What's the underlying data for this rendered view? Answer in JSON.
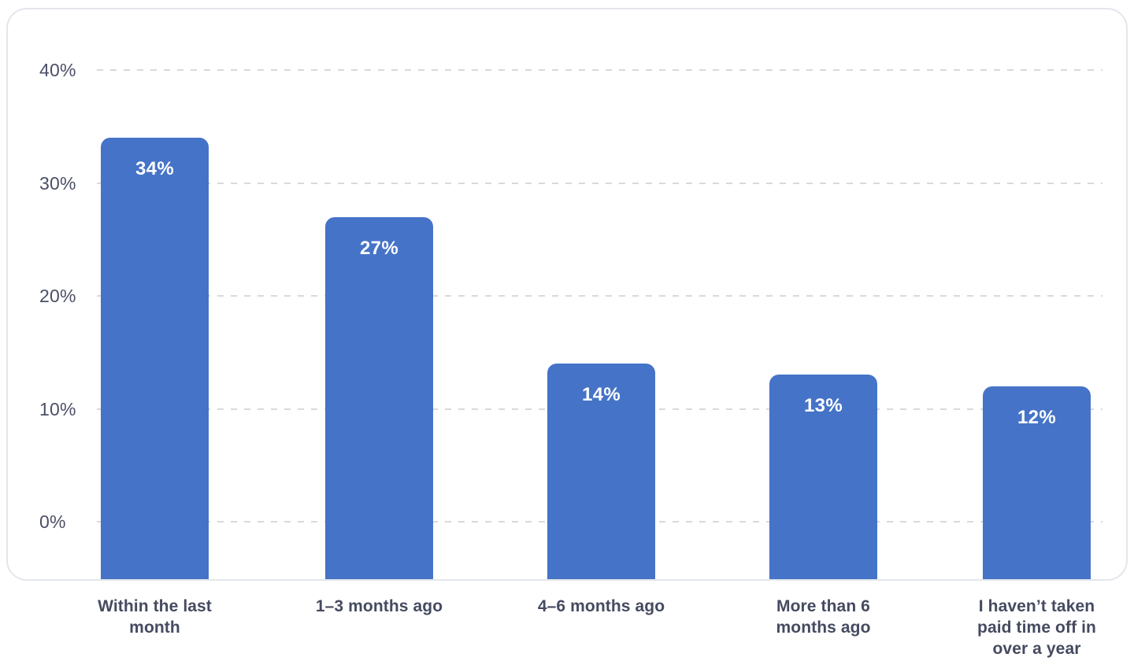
{
  "chart_data": {
    "type": "bar",
    "title": "",
    "xlabel": "",
    "ylabel": "",
    "categories": [
      "Within the last\nmonth",
      "1–3 months ago",
      "4–6 months ago",
      "More than 6\nmonths ago",
      "I haven’t taken\npaid time off in\nover a year"
    ],
    "values": [
      34,
      27,
      14,
      13,
      12
    ],
    "value_labels": [
      "34%",
      "27%",
      "14%",
      "13%",
      "12%"
    ],
    "y_ticks": [
      {
        "value": 40,
        "label": "40%"
      },
      {
        "value": 30,
        "label": "30%"
      },
      {
        "value": 20,
        "label": "20%"
      },
      {
        "value": 10,
        "label": "10%"
      },
      {
        "value": 0,
        "label": "0%"
      }
    ],
    "ylim": [
      0,
      40
    ],
    "grid": "horizontal-dashed",
    "legend": "none",
    "bar_style": "rounded-top",
    "colors": {
      "bar": "#4573c7",
      "value_text": "#ffffff",
      "axis_text": "#4b4f66",
      "category_text": "#454a60",
      "gridline": "#d9d9d9",
      "card_border": "#e3e6eb",
      "background": "#ffffff"
    }
  }
}
